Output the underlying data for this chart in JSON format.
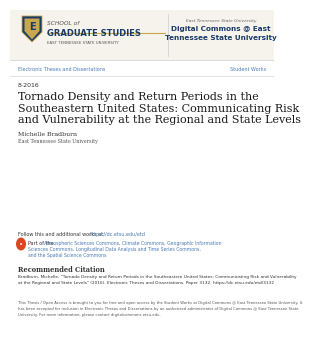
{
  "bg_color": "#ffffff",
  "left_header_school": "SCHOOL of",
  "left_header_grad": "GRADUATE STUDIES",
  "left_header_univ": "EAST TENNESSEE STATE UNIVERSITY",
  "right_header_line1": "East Tennessee State University",
  "right_header_line2": "Digital Commons @ East",
  "right_header_line3": "Tennessee State University",
  "nav_left": "Electronic Theses and Dissertations",
  "nav_right": "Student Works",
  "nav_color": "#4a7ab5",
  "date": "8-2016",
  "title_line1": "Tornado Density and Return Periods in the",
  "title_line2": "Southeastern United States: Communicating Risk",
  "title_line3": "and Vulnerability at the Regional and State Levels",
  "author": "Michelle Bradburn",
  "institution": "East Tennessee State University",
  "follow_label": "Follow this and additional works at: ",
  "follow_link": "https://dc.etsu.edu/etd",
  "commons_line1": "Atmospheric Sciences Commons, Climate Commons, Geographic Information",
  "commons_line2": "Sciences Commons, Longitudinal Data Analysis and Time Series Commons,",
  "commons_line3": "and the Spatial Science Commons",
  "part_of": "Part of the ",
  "rec_title": "Recommended Citation",
  "rec_body1": "Bradburn, Michelle, \"Tornado Density and Return Periods in the Southeastern United States: Communicating Risk and Vulnerability",
  "rec_body2": "at the Regional and State Levels\" (2016). Electronic Theses and Dissertations. Paper 3132. https://dc.etsu.edu/etd/3132",
  "footer1": "This Thesis / Open Access is brought to you for free and open access by the Student Works at Digital Commons @ East Tennessee State University. It",
  "footer2": "has been accepted for inclusion in Electronic Theses and Dissertations by an authorized administrator of Digital Commons @ East Tennessee State",
  "footer3": "University. For more information, please contact digitalcommons.etsu.edu.",
  "title_color": "#1a1a1a",
  "text_color": "#333333",
  "small_color": "#555555",
  "link_color": "#4a7ab5",
  "navy": "#1a3a6b",
  "gold": "#c8a84b",
  "sep_color": "#cccccc",
  "header_bg": "#f5f3ec",
  "right_italic_color": "#666666"
}
